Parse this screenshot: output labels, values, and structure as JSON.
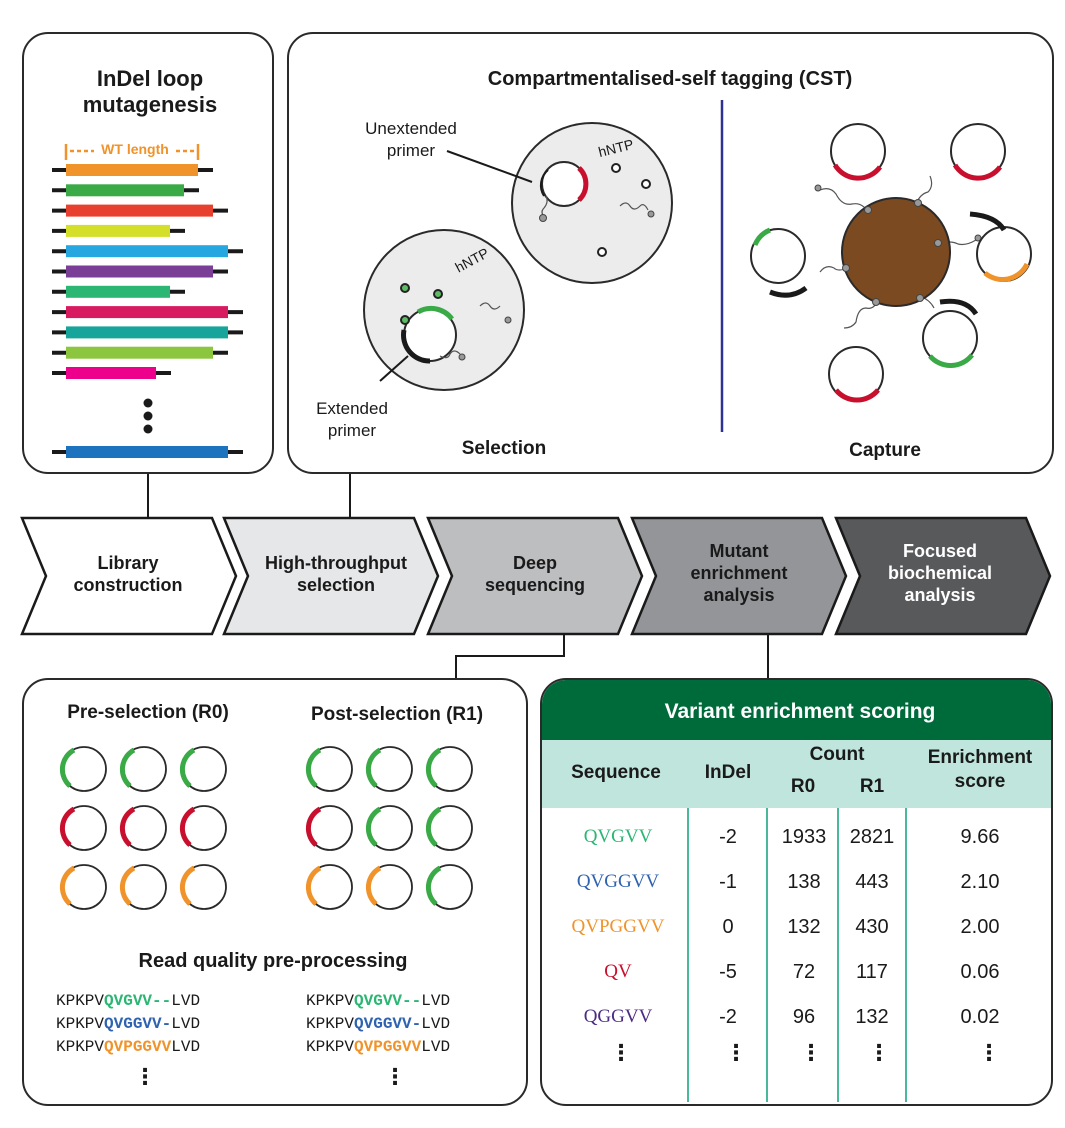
{
  "indel_panel": {
    "title": "InDel loop mutagenesis",
    "wt_length_label": "WT length",
    "bar_colors": [
      "#f0932a",
      "#3aaa47",
      "#e8402f",
      "#d4df2a",
      "#27a7e0",
      "#7a3e97",
      "#2bb673",
      "#d81b60",
      "#17a59b",
      "#8cc63f",
      "#ec008c",
      "#1e73be"
    ]
  },
  "cst_panel": {
    "title": "Compartmentalised-self tagging (CST)",
    "unextended_primer": "Unextended primer",
    "extended_primer": "Extended primer",
    "hntp_label": "hNTP",
    "selection_label": "Selection",
    "capture_label": "Capture"
  },
  "pipeline": {
    "steps": [
      {
        "label": "Library construction",
        "color": "#ffffff",
        "text_color": "#1a1a1a"
      },
      {
        "label": "High-throughput selection",
        "color": "#e6e7e8",
        "text_color": "#1a1a1a"
      },
      {
        "label": "Deep sequencing",
        "color": "#bcbec0",
        "text_color": "#1a1a1a"
      },
      {
        "label": "Mutant enrichment analysis",
        "color": "#939598",
        "text_color": "#1a1a1a"
      },
      {
        "label": "Focused biochemical analysis",
        "color": "#58595b",
        "text_color": "#ffffff"
      }
    ]
  },
  "reads_panel": {
    "pre_title": "Pre-selection (R0)",
    "post_title": "Post-selection (R1)",
    "preprocess_title": "Read quality pre-processing",
    "reads_left": [
      {
        "prefix": "KPKPV",
        "insert": "QVGVV--",
        "suffix": "LVD",
        "color": "#2bb673"
      },
      {
        "prefix": "KPKPV",
        "insert": "QVGGVV-",
        "suffix": "LVD",
        "color": "#2f63b0"
      },
      {
        "prefix": "KPKPV",
        "insert": "QVPGGVV",
        "suffix": "LVD",
        "color": "#f0932a"
      }
    ],
    "reads_right": [
      {
        "prefix": "KPKPV",
        "insert": "QVGVV--",
        "suffix": "LVD",
        "color": "#2bb673"
      },
      {
        "prefix": "KPKPV",
        "insert": "QVGGVV-",
        "suffix": "LVD",
        "color": "#2f63b0"
      },
      {
        "prefix": "KPKPV",
        "insert": "QVPGGVV",
        "suffix": "LVD",
        "color": "#f0932a"
      }
    ]
  },
  "table": {
    "title": "Variant enrichment scoring",
    "headers": {
      "sequence": "Sequence",
      "indel": "InDel",
      "count": "Count",
      "r0": "R0",
      "r1": "R1",
      "enrichment": "Enrichment score"
    },
    "rows": [
      {
        "seq": "QVGVV",
        "seq_color": "#2bb673",
        "indel": "-2",
        "r0": "1933",
        "r1": "2821",
        "score": "9.66"
      },
      {
        "seq": "QVGGVV",
        "seq_color": "#2f63b0",
        "indel": "-1",
        "r0": "138",
        "r1": "443",
        "score": "2.10"
      },
      {
        "seq": "QVPGGVV",
        "seq_color": "#f0932a",
        "indel": "0",
        "r0": "132",
        "r1": "430",
        "score": "2.00"
      },
      {
        "seq": "QV",
        "seq_color": "#c8102e",
        "indel": "-5",
        "r0": "72",
        "r1": "117",
        "score": "0.06"
      },
      {
        "seq": "QGGVV",
        "seq_color": "#4b2c84",
        "indel": "-2",
        "r0": "96",
        "r1": "132",
        "score": "0.02"
      }
    ],
    "header_color": "#006b3a",
    "header_bg": "#bfe5dc"
  }
}
